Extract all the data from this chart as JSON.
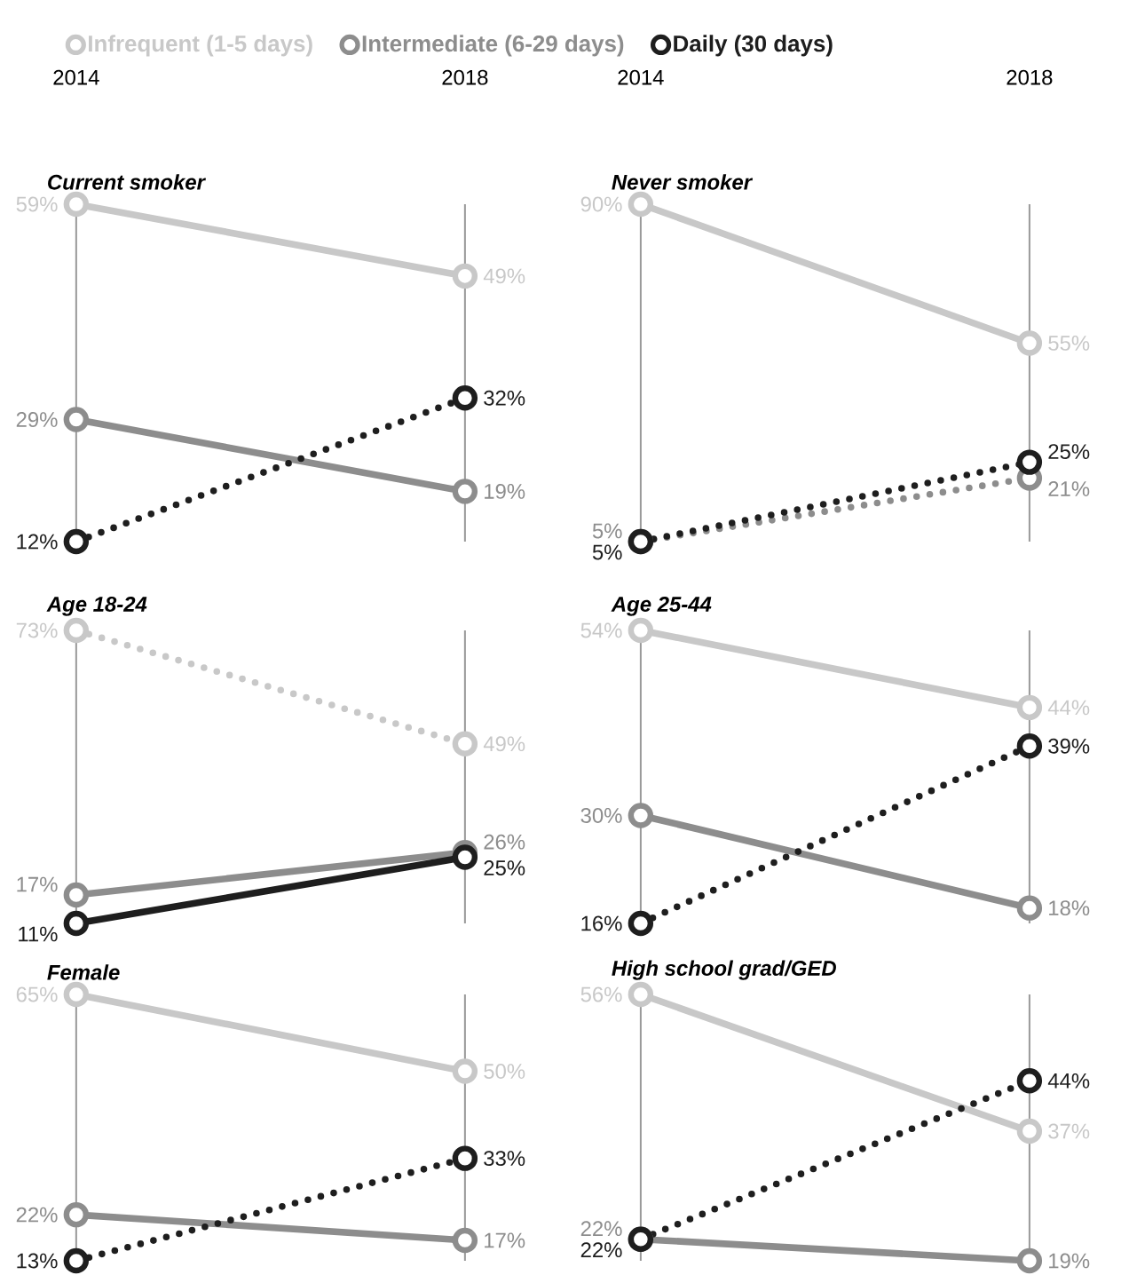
{
  "chart_data": [
    {
      "type": "line",
      "title": "Current smoker",
      "categories": [
        "2014",
        "2018"
      ],
      "grid": "x",
      "marker": "circle",
      "legend": "top",
      "tick_labels": "x",
      "series": [
        {
          "name": "Infrequent (1-5 days)",
          "color": "#c8c8c8",
          "values": [
            59,
            49
          ],
          "value_labels": [
            "59%",
            "49%"
          ],
          "line_style": "solid"
        },
        {
          "name": "Intermediate (6-29 days)",
          "color": "#8d8d8d",
          "values": [
            29,
            19
          ],
          "value_labels": [
            "29%",
            "19%"
          ],
          "line_style": "solid"
        },
        {
          "name": "Daily (30 days)",
          "color": "#1e1e1e",
          "values": [
            12,
            32
          ],
          "value_labels": [
            "12%",
            "32%"
          ],
          "line_style": "dotted"
        }
      ]
    },
    {
      "type": "line",
      "title": "Never smoker",
      "categories": [
        "2014",
        "2018"
      ],
      "grid": "x",
      "marker": "circle",
      "tick_labels": "x",
      "series": [
        {
          "color": "#c8c8c8",
          "values": [
            90,
            55
          ],
          "value_labels": [
            "90%",
            "55%"
          ],
          "line_style": "solid"
        },
        {
          "color": "#8d8d8d",
          "values": [
            5,
            21
          ],
          "value_labels": [
            "5%",
            "21%"
          ],
          "line_style": "dotted"
        },
        {
          "color": "#1e1e1e",
          "values": [
            5,
            25
          ],
          "value_labels": [
            "5%",
            "25%"
          ],
          "line_style": "dotted"
        }
      ]
    },
    {
      "type": "line",
      "title": "Age 18-24",
      "categories": [
        "2014",
        "2018"
      ],
      "grid": "x",
      "marker": "circle",
      "tick_labels": false,
      "series": [
        {
          "color": "#c8c8c8",
          "values": [
            73,
            49
          ],
          "value_labels": [
            "73%",
            "49%"
          ],
          "line_style": "dotted"
        },
        {
          "color": "#8d8d8d",
          "values": [
            17,
            26
          ],
          "value_labels": [
            "17%",
            "26%"
          ],
          "line_style": "solid"
        },
        {
          "color": "#1e1e1e",
          "values": [
            11,
            25
          ],
          "value_labels": [
            "11%",
            "25%"
          ],
          "line_style": "solid"
        }
      ]
    },
    {
      "type": "line",
      "title": "Age 25-44",
      "categories": [
        "2014",
        "2018"
      ],
      "grid": "x",
      "marker": "circle",
      "tick_labels": false,
      "series": [
        {
          "color": "#c8c8c8",
          "values": [
            54,
            44
          ],
          "value_labels": [
            "54%",
            "44%"
          ],
          "line_style": "solid"
        },
        {
          "color": "#8d8d8d",
          "values": [
            30,
            18
          ],
          "value_labels": [
            "30%",
            "18%"
          ],
          "line_style": "solid"
        },
        {
          "color": "#1e1e1e",
          "values": [
            16,
            39
          ],
          "value_labels": [
            "16%",
            "39%"
          ],
          "line_style": "dotted"
        }
      ]
    },
    {
      "type": "line",
      "title": "Female",
      "categories": [
        "2014",
        "2018"
      ],
      "grid": "x",
      "marker": "circle",
      "tick_labels": false,
      "series": [
        {
          "color": "#c8c8c8",
          "values": [
            65,
            50
          ],
          "value_labels": [
            "65%",
            "50%"
          ],
          "line_style": "solid"
        },
        {
          "color": "#8d8d8d",
          "values": [
            22,
            17
          ],
          "value_labels": [
            "22%",
            "17%"
          ],
          "line_style": "solid"
        },
        {
          "color": "#1e1e1e",
          "values": [
            13,
            33
          ],
          "value_labels": [
            "13%",
            "33%"
          ],
          "line_style": "dotted"
        }
      ]
    },
    {
      "type": "line",
      "title": "High school grad/GED",
      "categories": [
        "2014",
        "2018"
      ],
      "grid": "x",
      "marker": "circle",
      "tick_labels": false,
      "series": [
        {
          "color": "#c8c8c8",
          "values": [
            56,
            37
          ],
          "value_labels": [
            "56%",
            "37%"
          ],
          "line_style": "solid"
        },
        {
          "color": "#8d8d8d",
          "values": [
            22,
            19
          ],
          "value_labels": [
            "22%",
            "19%"
          ],
          "line_style": "solid"
        },
        {
          "color": "#1e1e1e",
          "values": [
            22,
            44
          ],
          "value_labels": [
            "22%",
            "44%"
          ],
          "line_style": "dotted"
        }
      ]
    }
  ]
}
